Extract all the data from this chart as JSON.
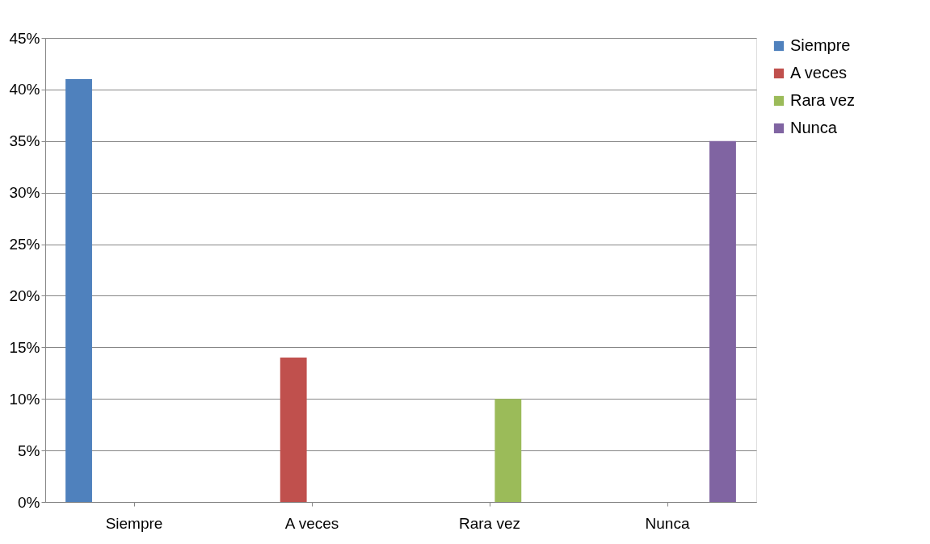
{
  "chart_data": {
    "type": "bar",
    "categories": [
      "Siempre",
      "A veces",
      "Rara vez",
      "Nunca"
    ],
    "series": [
      {
        "name": "Siempre",
        "color": "#4f81bd",
        "values": [
          41,
          null,
          null,
          null
        ]
      },
      {
        "name": "A veces",
        "color": "#c0504d",
        "values": [
          null,
          14,
          null,
          null
        ]
      },
      {
        "name": "Rara vez",
        "color": "#9bbb59",
        "values": [
          null,
          null,
          10,
          null
        ]
      },
      {
        "name": "Nunca",
        "color": "#8064a2",
        "values": [
          null,
          null,
          null,
          35
        ]
      }
    ],
    "ylim": [
      0,
      45
    ],
    "yticks": [
      {
        "value": 0,
        "label": "0%"
      },
      {
        "value": 5,
        "label": "5%"
      },
      {
        "value": 10,
        "label": "10%"
      },
      {
        "value": 15,
        "label": "15%"
      },
      {
        "value": 20,
        "label": "20%"
      },
      {
        "value": 25,
        "label": "25%"
      },
      {
        "value": 30,
        "label": "30%"
      },
      {
        "value": 35,
        "label": "35%"
      },
      {
        "value": 40,
        "label": "40%"
      },
      {
        "value": 45,
        "label": "45%"
      }
    ],
    "grid": "y",
    "legend": "right"
  }
}
